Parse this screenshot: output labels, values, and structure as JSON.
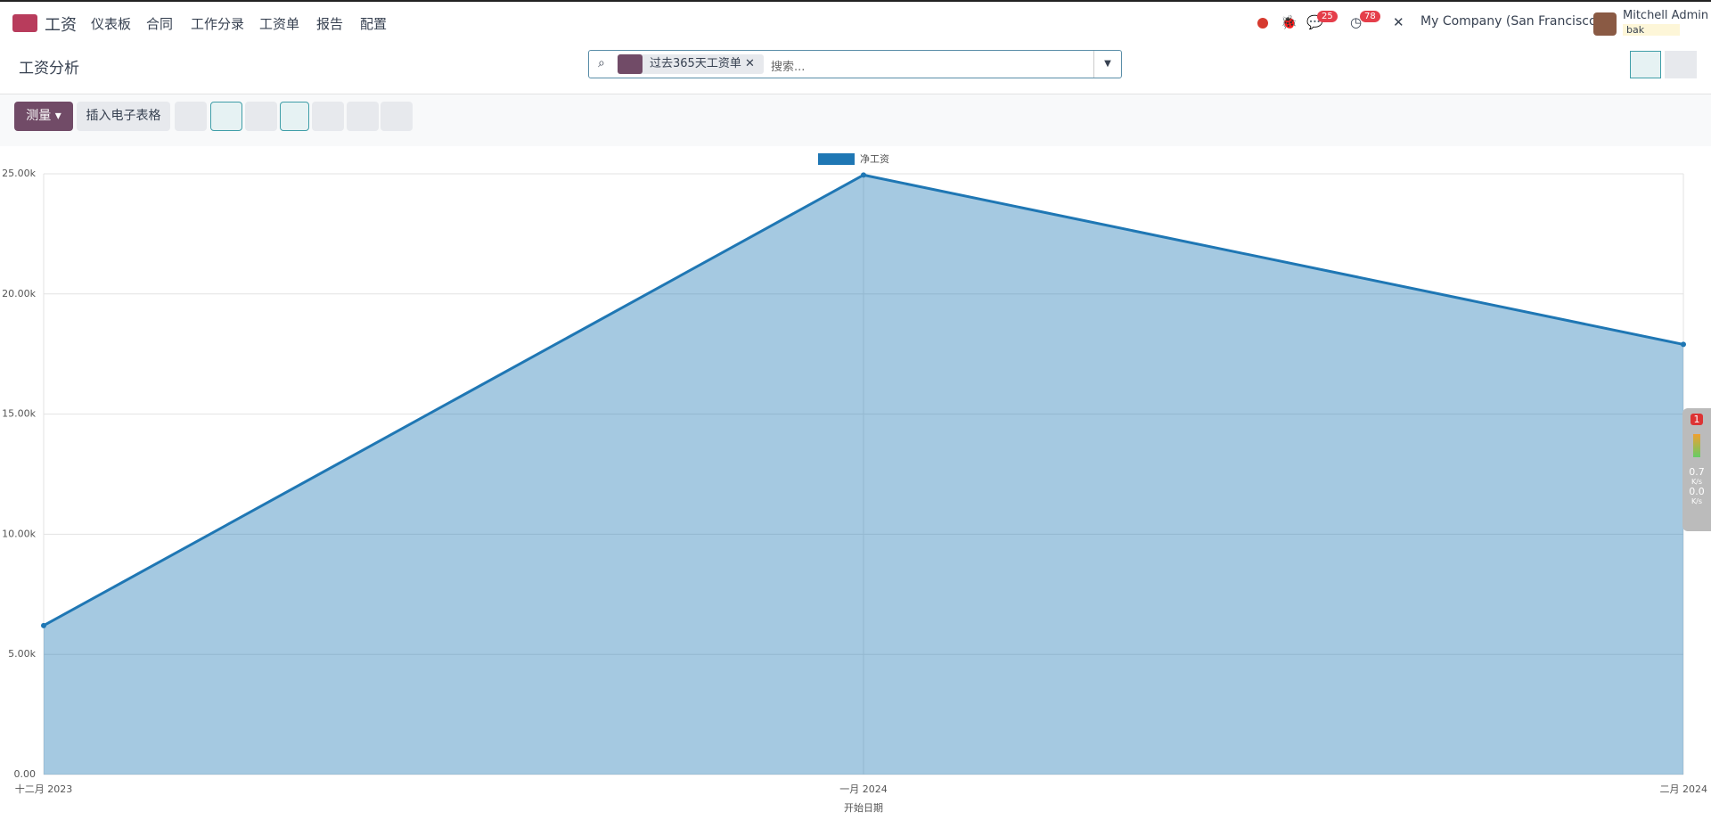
{
  "nav": {
    "app": "工资",
    "menu": [
      "仪表板",
      "合同",
      "工作分录",
      "工资单",
      "报告",
      "配置"
    ],
    "messages_badge": "25",
    "activities_badge": "78",
    "company": "My Company (San Francisco)",
    "user": "Mitchell Admin",
    "database": "bak"
  },
  "control": {
    "title": "工资分析",
    "facet": "过去365天工资单",
    "search_placeholder": "搜索...",
    "measure_button": "测量",
    "spreadsheet_button": "插入电子表格"
  },
  "widget": {
    "badge": "1",
    "rates": [
      {
        "value": "0.7",
        "unit": "K/s"
      },
      {
        "value": "0.0",
        "unit": "K/s"
      }
    ]
  },
  "chart_data": {
    "type": "line",
    "area": true,
    "series": [
      {
        "name": "净工资",
        "color": "#1f77b4",
        "values": [
          6200,
          24950,
          17900
        ]
      }
    ],
    "categories": [
      "十二月 2023",
      "一月 2024",
      "二月 2024"
    ],
    "x_label": "开始日期",
    "ylim": [
      0,
      25000
    ],
    "yticks": [
      {
        "value": 0,
        "label": "0.00"
      },
      {
        "value": 5000,
        "label": "5.00k"
      },
      {
        "value": 10000,
        "label": "10.00k"
      },
      {
        "value": 15000,
        "label": "15.00k"
      },
      {
        "value": 20000,
        "label": "20.00k"
      },
      {
        "value": 25000,
        "label": "25.00k"
      }
    ],
    "grid": true,
    "legend": "top"
  }
}
